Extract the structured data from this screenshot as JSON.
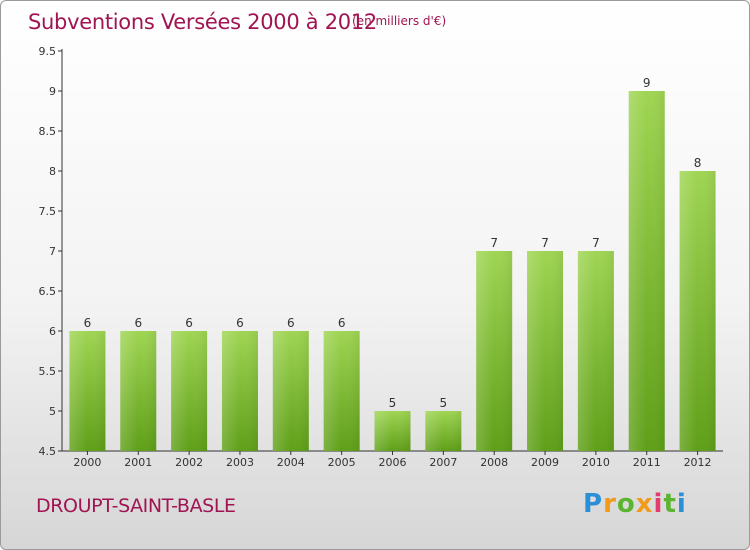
{
  "header": {
    "title": "Subventions Versées 2000 à 2012",
    "unit_note": "(en milliers d'€)"
  },
  "footer": {
    "commune": "DROUPT-SAINT-BASLE",
    "logo": "Proxiti"
  },
  "colors": {
    "title": "#a01452",
    "bar_light": "#9fd553",
    "bar_dark": "#5f9f18"
  },
  "chart_data": {
    "type": "bar",
    "title": "Subventions Versées 2000 à 2012",
    "subtitle": "(en milliers d'€)",
    "categories": [
      "2000",
      "2001",
      "2002",
      "2003",
      "2004",
      "2005",
      "2006",
      "2007",
      "2008",
      "2009",
      "2010",
      "2011",
      "2012"
    ],
    "values": [
      6,
      6,
      6,
      6,
      6,
      6,
      5,
      5,
      7,
      7,
      7,
      9,
      8
    ],
    "data_labels": [
      "6",
      "6",
      "6",
      "6",
      "6",
      "6",
      "5",
      "5",
      "7",
      "7",
      "7",
      "9",
      "8"
    ],
    "ylim": [
      4.5,
      9.5
    ],
    "yticks": [
      "4.5",
      "5",
      "5.5",
      "6",
      "6.5",
      "7",
      "7.5",
      "8",
      "8.5",
      "9",
      "9.5"
    ],
    "grid": false,
    "xlabel": "",
    "ylabel": ""
  }
}
